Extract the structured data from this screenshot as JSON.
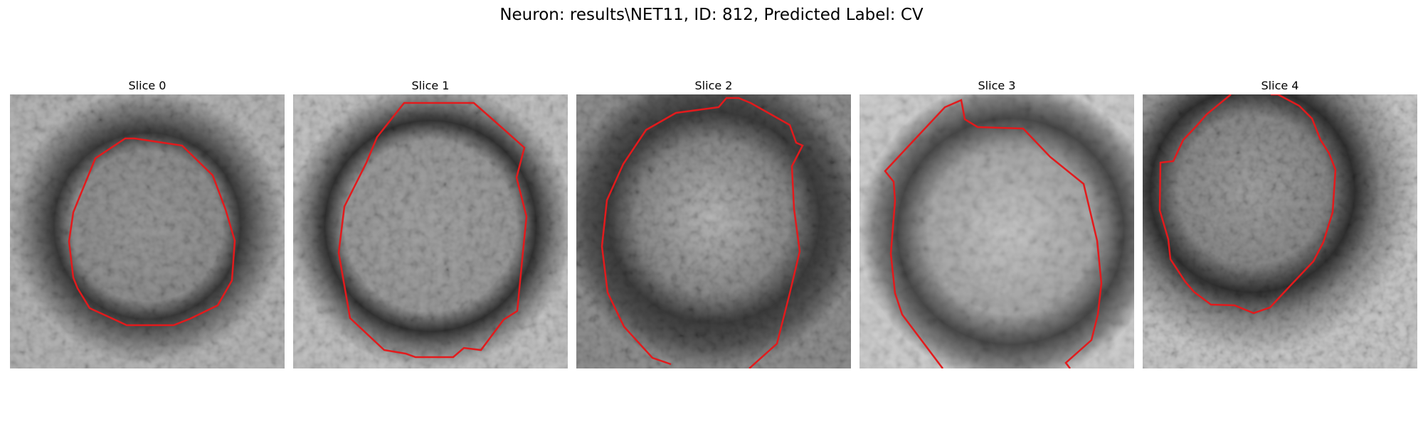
{
  "figure": {
    "title": "Neuron: results\\NET11, ID: 812, Predicted Label: CV"
  },
  "colors": {
    "contour": "#e31a1c",
    "background": "#ffffff"
  },
  "panels": [
    {
      "title": "Slice 0"
    },
    {
      "title": "Slice 1"
    },
    {
      "title": "Slice 2"
    },
    {
      "title": "Slice 3"
    },
    {
      "title": "Slice 4"
    }
  ]
}
